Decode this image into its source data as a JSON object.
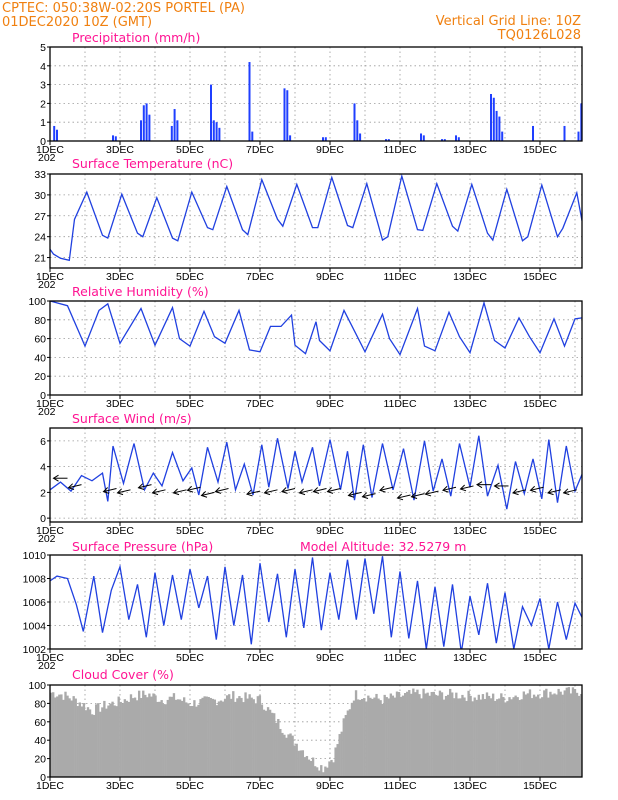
{
  "header": {
    "line1": "CPTEC:   050:38W-02:20S   PORTEL (PA)",
    "line2": "01DEC2020 10Z (GMT)",
    "grid_note": "Vertical Grid Line: 10Z",
    "code": "TQ0126L028"
  },
  "x_axis": {
    "labels": [
      "1DEC",
      "3DEC",
      "5DEC",
      "7DEC",
      "9DEC",
      "11DEC",
      "13DEC",
      "15DEC"
    ],
    "label_days": [
      0,
      2,
      4,
      6,
      8,
      10,
      12,
      14
    ],
    "day_span": 15.2,
    "clipped_year_label": "202"
  },
  "chart_data": [
    {
      "type": "bar",
      "title": "Precipitation (mm/h)",
      "ylim": [
        0,
        5
      ],
      "yticks": [
        0,
        1,
        2,
        3,
        4,
        5
      ],
      "color": "#1f3fff",
      "events": [
        {
          "t": 0.12,
          "v": 0.8
        },
        {
          "t": 0.2,
          "v": 0.6
        },
        {
          "t": 1.8,
          "v": 0.3
        },
        {
          "t": 1.88,
          "v": 0.25
        },
        {
          "t": 2.6,
          "v": 1.1
        },
        {
          "t": 2.68,
          "v": 1.9
        },
        {
          "t": 2.76,
          "v": 2.0
        },
        {
          "t": 2.84,
          "v": 1.4
        },
        {
          "t": 3.48,
          "v": 0.8
        },
        {
          "t": 3.56,
          "v": 1.7
        },
        {
          "t": 3.64,
          "v": 1.1
        },
        {
          "t": 4.6,
          "v": 3.0
        },
        {
          "t": 4.68,
          "v": 1.1
        },
        {
          "t": 4.76,
          "v": 1.0
        },
        {
          "t": 4.84,
          "v": 0.7
        },
        {
          "t": 5.7,
          "v": 4.2
        },
        {
          "t": 5.78,
          "v": 0.5
        },
        {
          "t": 6.7,
          "v": 2.8
        },
        {
          "t": 6.78,
          "v": 2.7
        },
        {
          "t": 6.86,
          "v": 0.3
        },
        {
          "t": 7.8,
          "v": 0.2
        },
        {
          "t": 7.88,
          "v": 0.2
        },
        {
          "t": 8.7,
          "v": 2.0
        },
        {
          "t": 8.78,
          "v": 1.1
        },
        {
          "t": 8.86,
          "v": 0.4
        },
        {
          "t": 9.6,
          "v": 0.1
        },
        {
          "t": 9.68,
          "v": 0.1
        },
        {
          "t": 10.6,
          "v": 0.4
        },
        {
          "t": 10.68,
          "v": 0.3
        },
        {
          "t": 11.2,
          "v": 0.1
        },
        {
          "t": 11.28,
          "v": 0.1
        },
        {
          "t": 11.6,
          "v": 0.3
        },
        {
          "t": 11.68,
          "v": 0.2
        },
        {
          "t": 12.6,
          "v": 2.5
        },
        {
          "t": 12.68,
          "v": 2.3
        },
        {
          "t": 12.76,
          "v": 1.6
        },
        {
          "t": 12.84,
          "v": 1.3
        },
        {
          "t": 12.92,
          "v": 0.5
        },
        {
          "t": 13.8,
          "v": 0.8
        },
        {
          "t": 14.7,
          "v": 0.8
        },
        {
          "t": 15.1,
          "v": 0.5
        },
        {
          "t": 15.18,
          "v": 2.0
        }
      ]
    },
    {
      "type": "line",
      "title": "Surface Temperature (nC)",
      "ylim": [
        19.5,
        33
      ],
      "yticks": [
        21,
        24,
        27,
        30,
        33
      ],
      "ytick_labels": [
        "21",
        "24",
        "27",
        "30",
        "33"
      ],
      "color": "#2040e0",
      "t": [
        0,
        0.1,
        0.3,
        0.55,
        0.7,
        1.05,
        1.5,
        1.65,
        2.05,
        2.5,
        2.65,
        3.05,
        3.5,
        3.65,
        4.05,
        4.5,
        4.65,
        5.05,
        5.5,
        5.65,
        6.05,
        6.5,
        6.65,
        7.05,
        7.5,
        7.65,
        8.05,
        8.5,
        8.65,
        9.05,
        9.5,
        9.65,
        10.05,
        10.5,
        10.65,
        11.05,
        11.5,
        11.65,
        12.05,
        12.5,
        12.65,
        13.05,
        13.5,
        13.65,
        14.05,
        14.5,
        14.65,
        15.05,
        15.2
      ],
      "values": [
        22.2,
        21.5,
        20.9,
        20.6,
        26.5,
        30.4,
        24.2,
        23.8,
        30.1,
        24.5,
        24.0,
        29.6,
        23.8,
        23.4,
        30.4,
        25.3,
        25.0,
        31.2,
        25.0,
        24.3,
        32.2,
        26.5,
        25.5,
        31.5,
        25.3,
        25.3,
        32.5,
        25.6,
        25.3,
        31.6,
        23.5,
        24.0,
        32.7,
        25.0,
        24.9,
        31.6,
        25.5,
        24.8,
        31.5,
        24.5,
        23.5,
        30.8,
        23.4,
        24.0,
        31.4,
        24.0,
        25.2,
        30.3,
        26.3
      ]
    },
    {
      "type": "line",
      "title": "Relative Humidity (%)",
      "ylim": [
        0,
        100
      ],
      "yticks": [
        0,
        20,
        40,
        60,
        80,
        100
      ],
      "ytick_labels": [
        "0",
        "20",
        "40",
        "60",
        "80",
        "100"
      ],
      "color": "#2040e0",
      "t": [
        0,
        0.5,
        1.0,
        1.4,
        1.65,
        2.0,
        2.6,
        3.0,
        3.5,
        3.7,
        4.0,
        4.4,
        4.7,
        5.0,
        5.4,
        5.7,
        6.0,
        6.3,
        6.6,
        6.9,
        7.0,
        7.3,
        7.6,
        7.7,
        8.0,
        8.4,
        8.7,
        9.0,
        9.5,
        9.7,
        10.0,
        10.5,
        10.7,
        11.0,
        11.4,
        11.7,
        12.0,
        12.4,
        12.7,
        13.0,
        13.4,
        13.7,
        14.0,
        14.4,
        14.7,
        15.0,
        15.2
      ],
      "values": [
        100,
        95,
        52,
        90,
        97,
        55,
        92,
        53,
        93,
        60,
        52,
        89,
        62,
        55,
        90,
        48,
        46,
        73,
        73,
        85,
        53,
        44,
        78,
        58,
        47,
        90,
        68,
        46,
        86,
        60,
        43,
        92,
        52,
        47,
        88,
        62,
        45,
        98,
        58,
        50,
        82,
        62,
        45,
        81,
        52,
        81,
        82
      ]
    },
    {
      "type": "line",
      "title": "Surface Wind (m/s)",
      "ylim": [
        -0.3,
        7
      ],
      "yticks": [
        0,
        2,
        4,
        6
      ],
      "ytick_labels": [
        "0",
        "2",
        "4",
        "6"
      ],
      "color": "#2040e0",
      "t": [
        0,
        0.3,
        0.6,
        0.9,
        1.2,
        1.5,
        1.65,
        1.8,
        2.1,
        2.4,
        2.7,
        2.95,
        3.2,
        3.5,
        3.8,
        4.05,
        4.25,
        4.5,
        4.8,
        5.05,
        5.3,
        5.55,
        5.8,
        6.05,
        6.25,
        6.5,
        6.8,
        7.0,
        7.2,
        7.5,
        7.7,
        8.0,
        8.3,
        8.5,
        8.7,
        8.95,
        9.2,
        9.5,
        9.8,
        10.1,
        10.4,
        10.7,
        10.95,
        11.2,
        11.45,
        11.7,
        12.0,
        12.25,
        12.5,
        12.8,
        13.05,
        13.3,
        13.55,
        13.8,
        14.05,
        14.25,
        14.5,
        14.75,
        15.0,
        15.2
      ],
      "values": [
        2.2,
        2.8,
        2.1,
        3.3,
        2.9,
        3.5,
        1.3,
        5.6,
        2.7,
        5.8,
        2.2,
        3.5,
        2.5,
        5.1,
        2.9,
        3.9,
        1.8,
        5.5,
        2.8,
        5.9,
        2.2,
        4.2,
        1.8,
        5.7,
        2.4,
        6.2,
        2.3,
        5.2,
        2.8,
        5.5,
        2.5,
        6.1,
        2.2,
        5.2,
        1.4,
        5.7,
        1.6,
        5.8,
        2.2,
        5.4,
        1.4,
        6.0,
        2.1,
        4.6,
        1.7,
        5.8,
        2.4,
        6.4,
        1.7,
        4.1,
        0.7,
        4.4,
        1.9,
        4.6,
        1.5,
        6.1,
        1.2,
        5.6,
        2.1,
        3.4
      ],
      "arrows": [
        {
          "t": 0.5,
          "y": 3.1,
          "dir": "W"
        },
        {
          "t": 0.9,
          "y": 2.6,
          "dir": "SW"
        },
        {
          "t": 1.9,
          "y": 2.3,
          "dir": "SW"
        },
        {
          "t": 2.3,
          "y": 2.2,
          "dir": "SW"
        },
        {
          "t": 2.9,
          "y": 2.6,
          "dir": "SW"
        },
        {
          "t": 3.3,
          "y": 2.2,
          "dir": "SW"
        },
        {
          "t": 3.9,
          "y": 2.2,
          "dir": "SW"
        },
        {
          "t": 4.3,
          "y": 2.4,
          "dir": "SW"
        },
        {
          "t": 4.7,
          "y": 2.0,
          "dir": "SW"
        },
        {
          "t": 5.1,
          "y": 2.3,
          "dir": "SW"
        },
        {
          "t": 6.0,
          "y": 2.1,
          "dir": "SW"
        },
        {
          "t": 6.5,
          "y": 2.2,
          "dir": "SW"
        },
        {
          "t": 7.0,
          "y": 2.3,
          "dir": "SW"
        },
        {
          "t": 7.5,
          "y": 2.2,
          "dir": "SW"
        },
        {
          "t": 7.9,
          "y": 2.3,
          "dir": "SW"
        },
        {
          "t": 8.3,
          "y": 2.3,
          "dir": "SW"
        },
        {
          "t": 8.9,
          "y": 2.0,
          "dir": "SW"
        },
        {
          "t": 9.3,
          "y": 1.9,
          "dir": "SW"
        },
        {
          "t": 9.8,
          "y": 2.4,
          "dir": "SW"
        },
        {
          "t": 10.3,
          "y": 1.8,
          "dir": "SW"
        },
        {
          "t": 10.7,
          "y": 1.9,
          "dir": "SW"
        },
        {
          "t": 11.1,
          "y": 2.1,
          "dir": "SW"
        },
        {
          "t": 11.6,
          "y": 2.4,
          "dir": "SW"
        },
        {
          "t": 12.1,
          "y": 2.5,
          "dir": "SW"
        },
        {
          "t": 12.6,
          "y": 2.6,
          "dir": "W"
        },
        {
          "t": 13.1,
          "y": 2.5,
          "dir": "W"
        },
        {
          "t": 13.6,
          "y": 2.2,
          "dir": "SW"
        },
        {
          "t": 14.1,
          "y": 2.4,
          "dir": "SW"
        },
        {
          "t": 14.6,
          "y": 2.2,
          "dir": "SW"
        },
        {
          "t": 15.05,
          "y": 2.2,
          "dir": "SW"
        }
      ]
    },
    {
      "type": "line",
      "title": "Surface Pressure (hPa)",
      "annotation": "Model Altitude: 32.5279  m",
      "ylim": [
        1002,
        1010
      ],
      "yticks": [
        1002,
        1004,
        1006,
        1008,
        1010
      ],
      "ytick_labels": [
        "1002",
        "1004",
        "1006",
        "1008",
        "1010"
      ],
      "color": "#2040e0",
      "t": [
        0,
        0.2,
        0.5,
        0.75,
        0.95,
        1.25,
        1.5,
        1.75,
        2.0,
        2.25,
        2.5,
        2.75,
        3.0,
        3.25,
        3.5,
        3.75,
        4.0,
        4.25,
        4.5,
        4.75,
        5.0,
        5.25,
        5.5,
        5.75,
        6.0,
        6.25,
        6.5,
        6.75,
        7.0,
        7.25,
        7.5,
        7.75,
        8.0,
        8.25,
        8.5,
        8.75,
        9.0,
        9.25,
        9.5,
        9.75,
        10.0,
        10.25,
        10.5,
        10.75,
        11.0,
        11.25,
        11.5,
        11.75,
        12.0,
        12.25,
        12.5,
        12.75,
        13.0,
        13.25,
        13.5,
        13.75,
        14.0,
        14.25,
        14.5,
        14.75,
        15.0,
        15.2
      ],
      "values": [
        1007.8,
        1008.2,
        1008.0,
        1005.8,
        1003.5,
        1008.2,
        1003.4,
        1007.0,
        1009.0,
        1004.5,
        1007.5,
        1003.0,
        1008.5,
        1004.0,
        1008.3,
        1004.5,
        1008.8,
        1005.5,
        1008.2,
        1002.8,
        1009.0,
        1004.0,
        1008.3,
        1002.4,
        1009.3,
        1004.3,
        1008.4,
        1003.0,
        1008.8,
        1003.8,
        1009.8,
        1003.6,
        1008.5,
        1004.5,
        1009.6,
        1004.5,
        1009.7,
        1005.0,
        1009.9,
        1003.0,
        1008.6,
        1002.9,
        1007.8,
        1002.0,
        1007.3,
        1002.2,
        1007.5,
        1001.7,
        1006.5,
        1003.2,
        1007.6,
        1002.5,
        1006.8,
        1002.0,
        1005.6,
        1004.0,
        1006.3,
        1002.0,
        1006.0,
        1002.8,
        1005.9,
        1004.7
      ]
    },
    {
      "type": "bar",
      "title": "Cloud Cover (%)",
      "ylim": [
        0,
        100
      ],
      "yticks": [
        0,
        20,
        40,
        60,
        80,
        100
      ],
      "ytick_labels": [
        "0",
        "20",
        "40",
        "60",
        "80",
        "100"
      ],
      "color": "#aaaaaa",
      "profile_t": [
        0,
        0.3,
        0.6,
        0.9,
        1.2,
        1.6,
        2.0,
        2.4,
        2.8,
        3.2,
        3.6,
        4.0,
        4.4,
        4.8,
        5.2,
        5.6,
        6.0,
        6.3,
        6.6,
        6.9,
        7.2,
        7.5,
        7.8,
        8.1,
        8.4,
        8.7,
        9.0,
        9.5,
        10.0,
        10.5,
        11.0,
        11.5,
        12.0,
        12.5,
        13.0,
        13.5,
        14.0,
        14.5,
        15.0,
        15.2
      ],
      "profile_v": [
        92,
        90,
        86,
        80,
        72,
        78,
        82,
        88,
        90,
        84,
        86,
        80,
        82,
        84,
        88,
        86,
        84,
        70,
        55,
        42,
        30,
        18,
        10,
        22,
        60,
        90,
        88,
        84,
        88,
        91,
        89,
        90,
        88,
        87,
        86,
        90,
        91,
        93,
        92,
        94
      ]
    }
  ]
}
